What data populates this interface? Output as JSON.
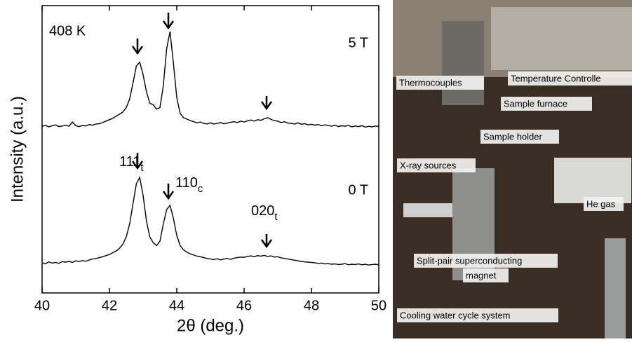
{
  "chart_data": {
    "type": "line",
    "x": [
      40.0,
      40.1,
      40.2,
      40.3,
      40.4,
      40.5,
      40.6,
      40.7,
      40.8,
      40.9,
      41.0,
      41.1,
      41.2,
      41.3,
      41.4,
      41.5,
      41.6,
      41.7,
      41.8,
      41.9,
      42.0,
      42.1,
      42.2,
      42.3,
      42.4,
      42.5,
      42.6,
      42.7,
      42.8,
      42.9,
      43.0,
      43.1,
      43.2,
      43.3,
      43.4,
      43.5,
      43.6,
      43.7,
      43.8,
      43.9,
      44.0,
      44.1,
      44.2,
      44.3,
      44.4,
      44.5,
      44.6,
      44.7,
      44.8,
      44.9,
      45.0,
      45.1,
      45.2,
      45.3,
      45.4,
      45.5,
      45.6,
      45.7,
      45.8,
      45.9,
      46.0,
      46.1,
      46.2,
      46.3,
      46.4,
      46.5,
      46.6,
      46.7,
      46.8,
      46.9,
      47.0,
      47.1,
      47.2,
      47.3,
      47.4,
      47.5,
      47.6,
      47.7,
      47.8,
      47.9,
      48.0,
      48.1,
      48.2,
      48.3,
      48.4,
      48.5,
      48.6,
      48.7,
      48.8,
      48.9,
      49.0,
      49.1,
      49.2,
      49.3,
      49.4,
      49.5,
      49.6,
      49.7,
      49.8,
      49.9,
      50.0
    ],
    "series": [
      {
        "name": "5 T",
        "color": "#000000",
        "values": [
          58.0,
          58.3,
          57.8,
          58.2,
          58.5,
          57.9,
          58.1,
          58.4,
          58.0,
          59.5,
          58.2,
          57.9,
          58.3,
          58.1,
          58.6,
          58.4,
          58.8,
          58.9,
          59.3,
          59.8,
          60.3,
          60.8,
          61.5,
          62.2,
          63.0,
          64.5,
          67.5,
          73,
          79,
          80.3,
          76,
          70,
          66,
          65.5,
          64,
          64.5,
          72,
          85,
          91,
          80,
          68,
          62.5,
          61,
          60.5,
          60,
          59.6,
          59.2,
          59.5,
          59.0,
          58.8,
          59.2,
          58.8,
          59.0,
          59.3,
          58.9,
          59.1,
          59.4,
          59.6,
          59.3,
          59.8,
          59.5,
          59.9,
          60.2,
          59.8,
          60.3,
          60.1,
          60.6,
          61.0,
          60.4,
          60.0,
          59.8,
          59.3,
          59.6,
          59.1,
          59.0,
          58.8,
          59.2,
          58.7,
          58.9,
          58.5,
          58.7,
          58.4,
          58.6,
          58.2,
          58.5,
          58.3,
          58.0,
          58.4,
          57.9,
          58.2,
          58.0,
          58.3,
          57.8,
          58.1,
          57.9,
          58.2,
          57.7,
          58.0,
          57.8,
          58.1,
          57.9
        ]
      },
      {
        "name": "0 T",
        "color": "#000000",
        "values": [
          10.5,
          10.2,
          10.8,
          10.4,
          10.6,
          10.3,
          10.9,
          10.7,
          11.0,
          10.6,
          11.2,
          10.9,
          11.3,
          11.0,
          11.5,
          11.8,
          12.0,
          12.3,
          12.6,
          13.0,
          13.4,
          14.0,
          14.6,
          15.5,
          17.0,
          19.5,
          24,
          31,
          38,
          40.2,
          34,
          25,
          19.5,
          17.5,
          16.5,
          18,
          24,
          29,
          30.5,
          26,
          20,
          16.5,
          15,
          14.2,
          13.6,
          13.2,
          12.8,
          12.6,
          12.3,
          12.0,
          11.8,
          11.6,
          11.9,
          11.5,
          11.8,
          12.0,
          11.7,
          12.1,
          12.3,
          12.5,
          12.4,
          12.7,
          12.9,
          12.6,
          13.0,
          12.8,
          13.1,
          12.7,
          12.9,
          12.5,
          12.6,
          12.2,
          12.0,
          11.8,
          11.6,
          11.4,
          11.2,
          11.0,
          10.8,
          10.7,
          10.6,
          10.5,
          10.3,
          10.4,
          10.1,
          10.2,
          10.0,
          10.1,
          9.9,
          10.0,
          10.2,
          9.8,
          10.0,
          9.9,
          10.1,
          9.8,
          10.0,
          9.7,
          9.9,
          10.0,
          9.8
        ]
      }
    ],
    "xlim": [
      40,
      50
    ],
    "xticks": [
      40,
      42,
      44,
      46,
      48,
      50
    ],
    "ylim": [
      0,
      100
    ],
    "x_label": "2θ (deg.)",
    "y_label": "Intensity (a.u.)",
    "annotations": [
      "408 K",
      {
        "text": "111",
        "sub": "t"
      },
      {
        "text": "110",
        "sub": "c"
      },
      {
        "text": "020",
        "sub": "t"
      }
    ]
  },
  "photo": {
    "labels": [
      "Thermocouples",
      "Temperature Controlle",
      "Sample furnace",
      "Sample holder",
      "X-ray sources",
      "He gas",
      "Split-pair superconducting",
      "magnet",
      "Cooling water cycle system"
    ]
  }
}
